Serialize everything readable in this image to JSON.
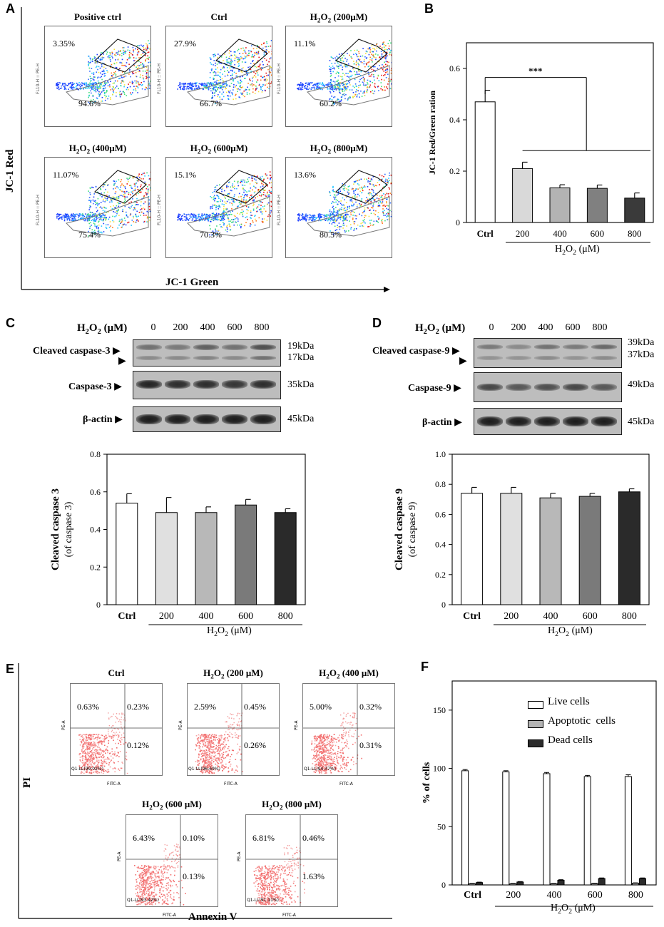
{
  "panelA": {
    "letter": "A",
    "ylabel": "JC-1 Red",
    "xlabel": "JC-1 Green",
    "axis_label": "FL10-H :: PE-H",
    "plots": [
      {
        "title": "Positive ctrl",
        "upper": "3.35%",
        "lower": "94.6%"
      },
      {
        "title": "Ctrl",
        "upper": "27.9%",
        "lower": "66.7%"
      },
      {
        "title": "H2O2 (200μM)",
        "upper": "11.1%",
        "lower": "60.2%"
      },
      {
        "title": "H2O2 (400μM)",
        "upper": "11.07%",
        "lower": "75.4%"
      },
      {
        "title": "H2O2 (600μM)",
        "upper": "15.1%",
        "lower": "70.3%"
      },
      {
        "title": "H2O2 (800μM)",
        "upper": "13.6%",
        "lower": "80.5%"
      }
    ]
  },
  "panelB": {
    "letter": "B",
    "significance": "***",
    "treatment_label": "H2O2 (μM)"
  },
  "panelC": {
    "letter": "C",
    "header": "H2O2 (μM)",
    "lanes": [
      "0",
      "200",
      "400",
      "600",
      "800"
    ],
    "rows": [
      {
        "label": "Cleaved caspase-3 ▶",
        "kda1": "19kDa",
        "kda2": "17kDa"
      },
      {
        "label": "Caspase-3 ▶",
        "kda": "35kDa"
      },
      {
        "label": "β-actin ▶",
        "kda": "45kDa"
      }
    ],
    "arrow2": "▶",
    "treatment_label": "H2O2 (μM)"
  },
  "panelD": {
    "letter": "D",
    "header": "H2O2 (μM)",
    "lanes": [
      "0",
      "200",
      "400",
      "600",
      "800"
    ],
    "rows": [
      {
        "label": "Cleaved caspase-9 ▶",
        "kda1": "39kDa",
        "kda2": "37kDa"
      },
      {
        "label": "Caspase-9 ▶",
        "kda": "49kDa"
      },
      {
        "label": "β-actin ▶",
        "kda": "45kDa"
      }
    ],
    "arrow2": "▶",
    "treatment_label": "H2O2 (μM)"
  },
  "panelE": {
    "letter": "E",
    "ylabel": "PI",
    "xlabel": "Annexin V",
    "axis_y": "PE-A",
    "axis_x": "FITC-A",
    "plots": [
      {
        "title": "Ctrl",
        "ul": "0.63%",
        "ur": "0.23%",
        "lr": "0.12%",
        "ll": "Q1-LL(99.02%)"
      },
      {
        "title": "H2O2 (200 μM)",
        "ul": "2.59%",
        "ur": "0.45%",
        "lr": "0.26%",
        "ll": "Q1-LL(96.69%)"
      },
      {
        "title": "H2O2 (400 μM)",
        "ul": "5.00%",
        "ur": "0.32%",
        "lr": "0.31%",
        "ll": "Q1-LL(94.37%)"
      },
      {
        "title": "H2O2 (600 μM)",
        "ul": "6.43%",
        "ur": "0.10%",
        "lr": "0.13%",
        "ll": "Q1-LL(93.42%)"
      },
      {
        "title": "H2O2 (800 μM)",
        "ul": "6.81%",
        "ur": "0.46%",
        "lr": "1.63%",
        "ll": "Q1-LL(91.11%)"
      }
    ]
  },
  "panelF": {
    "letter": "F",
    "legend": [
      "Live cells",
      "Apoptotic  cells",
      "Dead cells"
    ],
    "treatment_label": "H2O2 (μM)"
  },
  "chart_data": [
    {
      "id": "B",
      "type": "bar",
      "categories": [
        "Ctrl",
        "200",
        "400",
        "600",
        "800"
      ],
      "values": [
        0.47,
        0.21,
        0.135,
        0.133,
        0.095
      ],
      "errors": [
        0.045,
        0.025,
        0.012,
        0.013,
        0.02
      ],
      "colors": [
        "#ffffff",
        "#d9d9d9",
        "#b3b3b3",
        "#808080",
        "#3a3a3a"
      ],
      "ylabel": "JC-1 Red/Green ration",
      "ylim": [
        0,
        0.7
      ],
      "yticks": [
        "0",
        "0.2",
        "0.4",
        "0.6"
      ],
      "xlabel": "H2O2 (μM)"
    },
    {
      "id": "C",
      "type": "bar",
      "categories": [
        "Ctrl",
        "200",
        "400",
        "600",
        "800"
      ],
      "values": [
        0.54,
        0.49,
        0.49,
        0.53,
        0.49
      ],
      "errors": [
        0.05,
        0.08,
        0.03,
        0.03,
        0.02
      ],
      "colors": [
        "#ffffff",
        "#e0e0e0",
        "#b8b8b8",
        "#7a7a7a",
        "#2a2a2a"
      ],
      "ylabel": "Cleaved caspase 3",
      "ylabel2": "(of caspase 3)",
      "ylim": [
        0,
        0.8
      ],
      "yticks": [
        "0",
        "0.2",
        "0.4",
        "0.6",
        "0.8"
      ],
      "xlabel": "H2O2 (μM)"
    },
    {
      "id": "D",
      "type": "bar",
      "categories": [
        "Ctrl",
        "200",
        "400",
        "600",
        "800"
      ],
      "values": [
        0.74,
        0.74,
        0.71,
        0.72,
        0.75
      ],
      "errors": [
        0.04,
        0.04,
        0.03,
        0.02,
        0.02
      ],
      "colors": [
        "#ffffff",
        "#e0e0e0",
        "#b8b8b8",
        "#7a7a7a",
        "#2a2a2a"
      ],
      "ylabel": "Cleaved caspase 9",
      "ylabel2": "(of caspase 9)",
      "ylim": [
        0,
        1.0
      ],
      "yticks": [
        "0",
        "0.2",
        "0.4",
        "0.6",
        "0.8",
        "1.0"
      ],
      "xlabel": "H2O2 (μM)"
    },
    {
      "id": "F",
      "type": "bar",
      "categories": [
        "Ctrl",
        "200",
        "400",
        "600",
        "800"
      ],
      "series": [
        {
          "name": "Live cells",
          "values": [
            98,
            97,
            95.5,
            93,
            93
          ],
          "errors": [
            1,
            1,
            1,
            1,
            1.5
          ],
          "color": "#ffffff"
        },
        {
          "name": "Apoptotic  cells",
          "values": [
            1,
            1,
            1,
            1.2,
            1.5
          ],
          "errors": [
            0.3,
            0.3,
            0.3,
            0.3,
            0.3
          ],
          "color": "#b3b3b3"
        },
        {
          "name": "Dead cells",
          "values": [
            2,
            2.5,
            4,
            5.5,
            5.5
          ],
          "errors": [
            0.4,
            0.4,
            0.5,
            0.5,
            0.5
          ],
          "color": "#2b2b2b"
        }
      ],
      "ylabel": "% of cells",
      "ylim": [
        0,
        175
      ],
      "yticks": [
        "0",
        "50",
        "100",
        "150"
      ],
      "xlabel": "H2O2 (μM)"
    }
  ]
}
